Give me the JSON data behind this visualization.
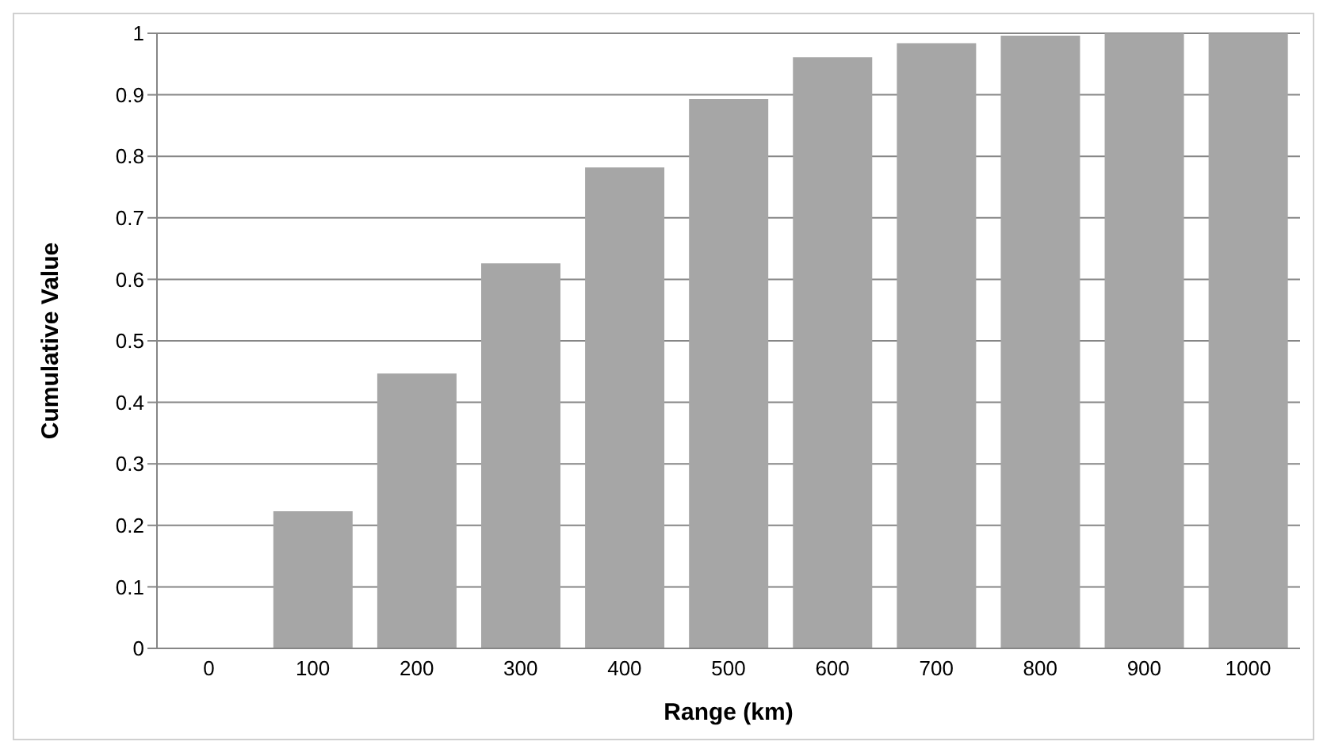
{
  "chart_data": {
    "type": "bar",
    "xlabel": "Range (km)",
    "ylabel": "Cumulative Value",
    "categories": [
      "0",
      "100",
      "200",
      "300",
      "400",
      "500",
      "600",
      "700",
      "800",
      "900",
      "1000"
    ],
    "values": [
      0,
      0.223,
      0.447,
      0.626,
      0.782,
      0.893,
      0.961,
      0.984,
      0.996,
      1,
      1
    ],
    "color": "#a6a6a6",
    "ylim": [
      0,
      1
    ],
    "yticks": [
      0,
      0.1,
      0.2,
      0.3,
      0.4,
      0.5,
      0.6,
      0.7,
      0.8,
      0.9,
      1
    ],
    "grid": "y"
  }
}
